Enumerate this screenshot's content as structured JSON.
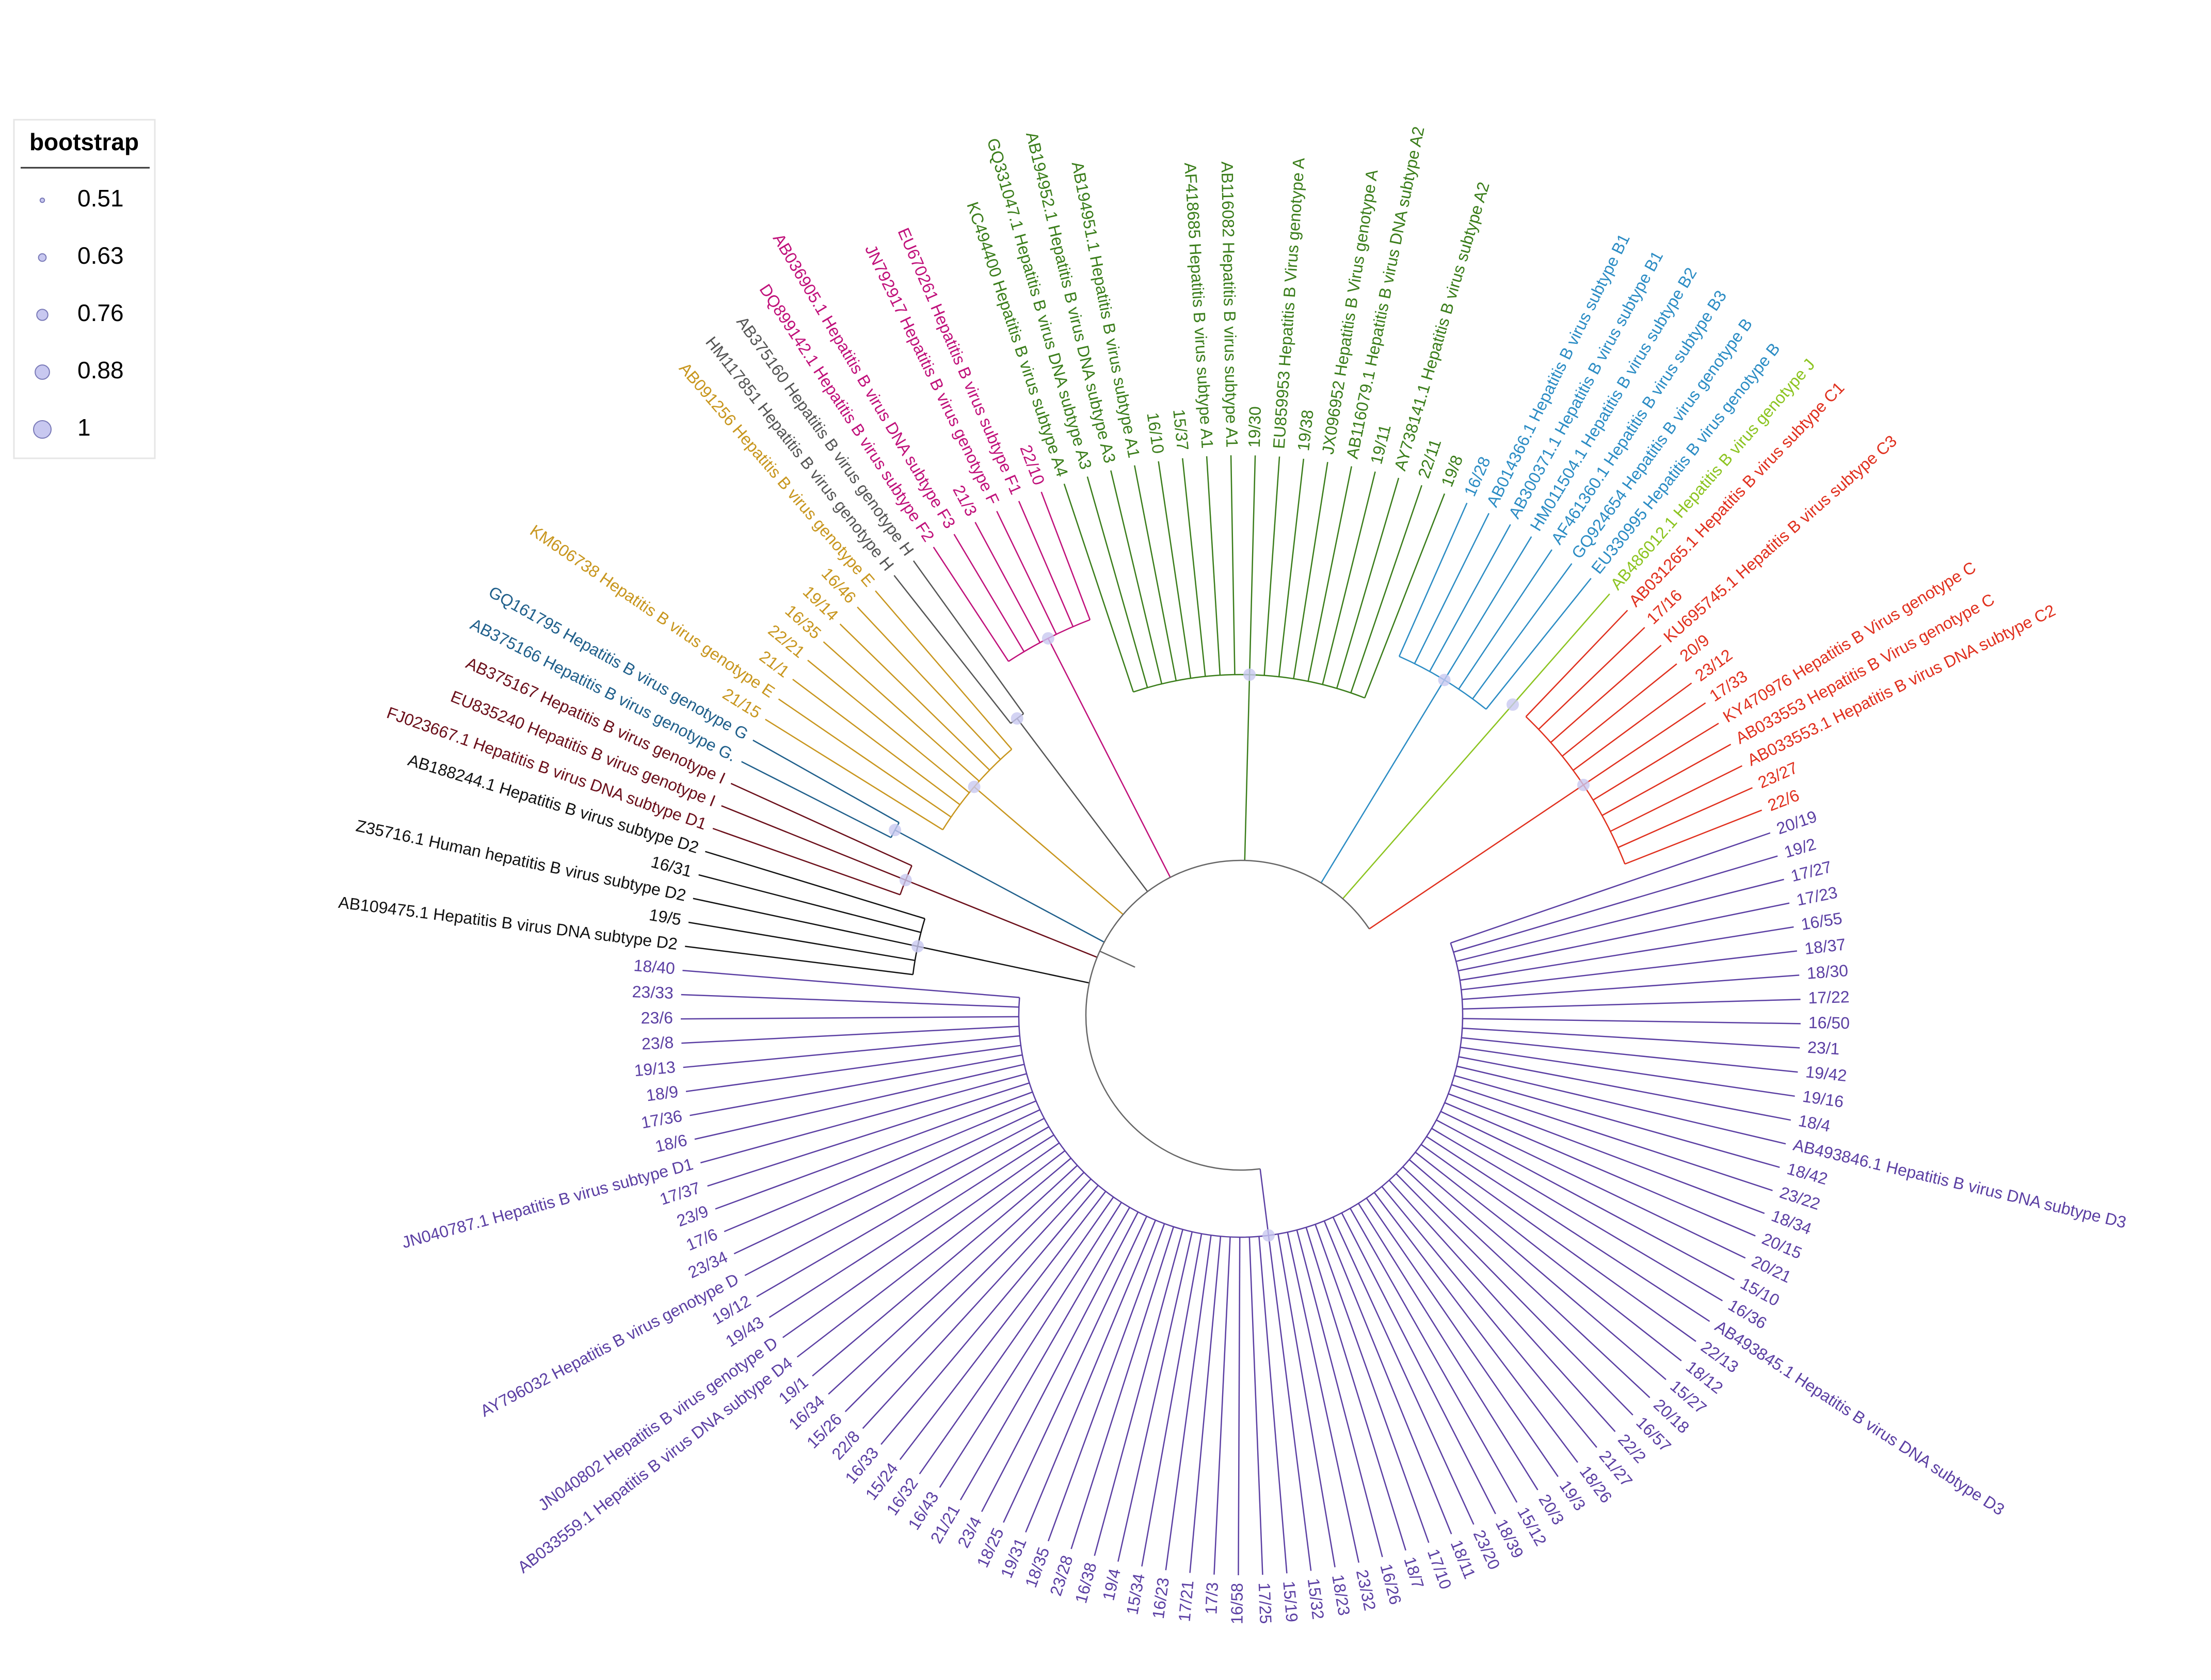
{
  "legend": {
    "title": "bootstrap",
    "entries": [
      0.51,
      0.63,
      0.76,
      0.88,
      1
    ]
  },
  "clades": [
    {
      "color": "#5b3fa3",
      "leaves": [
        "20/19",
        "19/2",
        "17/27",
        "17/23",
        "16/55",
        "18/37",
        "18/30",
        "17/22",
        "16/50",
        "23/1",
        "19/42",
        "19/16",
        "18/4",
        "AB493846.1 Hepatitis B virus DNA subtype D3",
        "18/42",
        "23/22",
        "18/34",
        "20/15",
        "20/21",
        "15/10",
        "16/36",
        "AB493845.1 Hepatitis B virus DNA subtype D3",
        "22/13",
        "18/12",
        "15/27",
        "20/18",
        "16/57",
        "22/2",
        "21/27",
        "18/26",
        "19/3",
        "20/3",
        "15/12",
        "18/39",
        "23/20",
        "18/11",
        "17/10",
        "18/7",
        "16/26",
        "23/32",
        "18/23",
        "15/32",
        "15/19",
        "17/25",
        "16/58",
        "17/3",
        "17/21",
        "16/23",
        "15/34",
        "19/4",
        "16/38",
        "23/28",
        "18/35",
        "19/31",
        "18/25",
        "23/4",
        "21/21",
        "16/43",
        "16/32",
        "15/24",
        "16/33",
        "22/8",
        "15/26",
        "16/34",
        "19/1",
        "AB033559.1 Hepatitis B virus DNA subtype D4",
        "JN040802 Hepatitis B virus genotype D",
        "19/43",
        "19/12",
        "AY796032 Hepatitis B virus genotype D",
        "23/34",
        "17/6",
        "23/9",
        "17/37",
        "JN040787.1 Hepatitis B virus subtype D1",
        "18/6",
        "17/36",
        "18/9",
        "19/13",
        "23/8",
        "23/6",
        "23/33",
        "18/40"
      ]
    },
    {
      "color": "#111111",
      "leaves": [
        "AB109475.1 Hepatitis B virus DNA subtype D2",
        "19/5",
        "Z35716.1 Human hepatitis B virus subtype D2",
        "16/31",
        "AB188244.1 Hepatitis B virus subtype D2"
      ]
    },
    {
      "color": "#6b0f1a",
      "leaves": [
        "FJ023667.1 Hepatitis B virus DNA subtype D1",
        "EU835240 Hepatitis B virus genotype I",
        "AB375167 Hepatitis B virus genotype I"
      ]
    },
    {
      "color": "#1f5f8b",
      "leaves": [
        "AB375166 Hepatitis B virus genotype G.",
        "GQ161795 Hepatitis B virus genotype G"
      ]
    },
    {
      "color": "#c8961e",
      "leaves": [
        "21/15",
        "KM606738 Hepatitis B virus genotype E",
        "21/1",
        "22/21",
        "16/35",
        "19/14",
        "16/46",
        "AB091256 Hepatitis B virus genotype E"
      ]
    },
    {
      "color": "#555555",
      "leaves": [
        "HM117851 Hepatitis B virus genotype H",
        "AB375160 Hepatitis B virus genotype H"
      ]
    },
    {
      "color": "#c0107a",
      "leaves": [
        "DQ899142.1 Hepatitis B virus subtype F2",
        "AB036905.1 Hepatitis B virus DNA subtype F3",
        "21/3",
        "JN792917 Hepatitis B virus genotype F",
        "EU670261 Hepatitis B virus subtype F1",
        "22/10"
      ]
    },
    {
      "color": "#3a7d1a",
      "leaves": [
        "KC494400 Hepatitis B virus subtype A4",
        "GQ331047.1 Hepatitis B virus DNA subtype A3",
        "AB194952.1 Hepatitis B virus DNA subtype A3",
        "AB194951.1 Hepatitis B virus subtype A1",
        "16/10",
        "15/37",
        "AF418685 Hepatitis B virus subtype A1",
        "AB116082 Hepatitis B virus subtype A1",
        "19/30",
        "EU859953 Hepatitis B Virus genotype A",
        "19/38",
        "JX096952 Hepatitis B Virus genotype A",
        "AB116079.1 Hepatitis B virus DNA subtype A2",
        "19/11",
        "AY738141.1 Hepatitis B virus subtype A2",
        "22/11",
        "19/8"
      ]
    },
    {
      "color": "#2b8cc4",
      "leaves": [
        "16/28",
        "AB014366.1 Hepatitis B virus subtype B1",
        "AB300371.1 Hepatitis B virus subtype B1",
        "HM011504.1 Hepatitis B virus subtype B2",
        "AF461360.1 Hepatitis B virus subtype B3",
        "GQ924654 Hepatitis B virus genotype B",
        "EU330995 Hepatitis B virus genotype B"
      ]
    },
    {
      "color": "#8cc420",
      "leaves": [
        "AB486012.1 Hepatitis B virus genotype J"
      ]
    },
    {
      "color": "#e0301e",
      "leaves": [
        "AB031265.1 Hepatitis B virus subtype C1",
        "17/16",
        "KU695745.1 Hepatitis B virus subtype C3",
        "20/9",
        "23/12",
        "17/33",
        "KY470976 Hepatitis B Virus genotype C",
        "AB033553 Hepatitis B Virus genotype C",
        "AB033553.1 Hepatitis B virus DNA subtype C2",
        "23/27",
        "22/6"
      ]
    }
  ]
}
